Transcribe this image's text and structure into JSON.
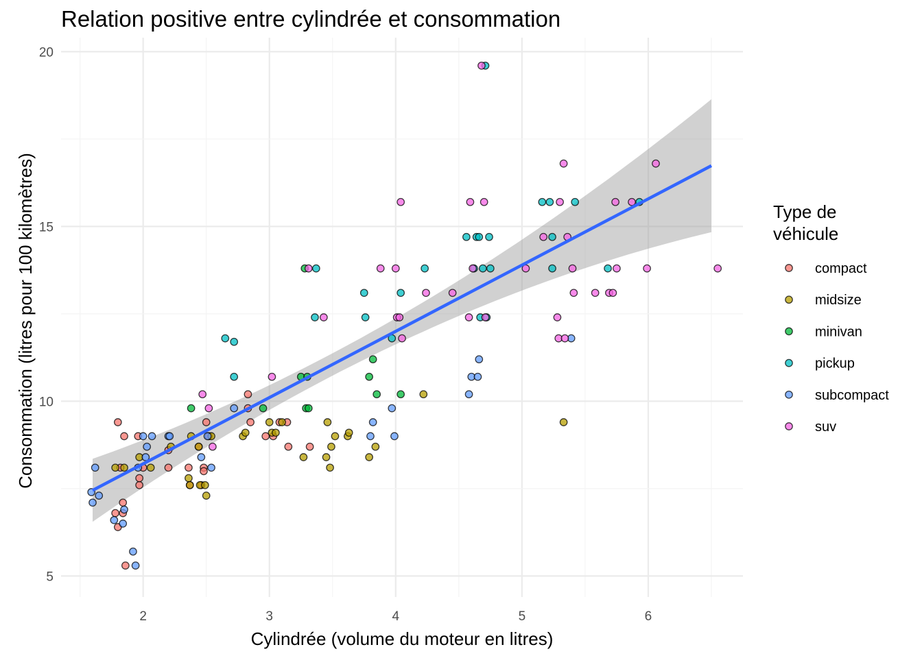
{
  "chart_data": {
    "type": "scatter",
    "title": "Relation positive entre cylindrée et consommation",
    "xlabel": "Cylindrée (volume du moteur en litres)",
    "ylabel": "Consommation (litres pour 100 kilomètres)",
    "xlim": [
      1.35,
      6.75
    ],
    "ylim": [
      4.4,
      20.4
    ],
    "x_ticks": [
      2,
      3,
      4,
      5,
      6
    ],
    "y_ticks": [
      5,
      10,
      15,
      20
    ],
    "grid": true,
    "legend": {
      "title_lines": [
        "Type de",
        "véhicule"
      ],
      "position": "right"
    },
    "series": [
      {
        "name": "compact",
        "color": "#F8766D",
        "points": [
          [
            1.78,
            6.8
          ],
          [
            1.8,
            6.4
          ],
          [
            1.82,
            8.1
          ],
          [
            1.8,
            9.4
          ],
          [
            1.85,
            9.0
          ],
          [
            1.84,
            6.8
          ],
          [
            1.84,
            7.1
          ],
          [
            1.86,
            5.3
          ],
          [
            1.96,
            9.0
          ],
          [
            1.97,
            7.6
          ],
          [
            1.97,
            7.8
          ],
          [
            2.0,
            8.1
          ],
          [
            2.2,
            8.1
          ],
          [
            2.2,
            8.6
          ],
          [
            2.36,
            8.1
          ],
          [
            2.37,
            7.6
          ],
          [
            2.46,
            7.6
          ],
          [
            2.44,
            8.7
          ],
          [
            2.48,
            8.1
          ],
          [
            2.48,
            8.0
          ],
          [
            2.5,
            9.4
          ],
          [
            2.52,
            9.0
          ],
          [
            2.83,
            10.2
          ],
          [
            2.83,
            9.8
          ],
          [
            2.85,
            9.4
          ],
          [
            2.97,
            9.0
          ],
          [
            3.03,
            9.0
          ],
          [
            3.08,
            9.4
          ],
          [
            3.14,
            9.4
          ],
          [
            3.15,
            8.7
          ],
          [
            3.32,
            8.7
          ]
        ]
      },
      {
        "name": "midsize",
        "color": "#B79F00",
        "points": [
          [
            1.78,
            8.1
          ],
          [
            1.85,
            8.1
          ],
          [
            1.97,
            8.4
          ],
          [
            2.06,
            8.1
          ],
          [
            2.22,
            8.7
          ],
          [
            2.36,
            7.8
          ],
          [
            2.37,
            7.6
          ],
          [
            2.38,
            9.0
          ],
          [
            2.45,
            7.6
          ],
          [
            2.44,
            8.7
          ],
          [
            2.5,
            7.3
          ],
          [
            2.49,
            7.6
          ],
          [
            2.54,
            9.0
          ],
          [
            2.79,
            9.0
          ],
          [
            2.81,
            9.1
          ],
          [
            3.0,
            9.4
          ],
          [
            3.02,
            9.1
          ],
          [
            3.05,
            9.1
          ],
          [
            3.1,
            9.4
          ],
          [
            3.27,
            8.4
          ],
          [
            3.45,
            8.4
          ],
          [
            3.46,
            9.4
          ],
          [
            3.48,
            8.1
          ],
          [
            3.49,
            8.7
          ],
          [
            3.52,
            9.0
          ],
          [
            3.62,
            9.0
          ],
          [
            3.63,
            9.1
          ],
          [
            3.79,
            8.4
          ],
          [
            3.84,
            8.7
          ],
          [
            4.22,
            10.2
          ],
          [
            5.33,
            9.4
          ]
        ]
      },
      {
        "name": "minivan",
        "color": "#00BA38",
        "points": [
          [
            2.38,
            9.8
          ],
          [
            2.95,
            9.8
          ],
          [
            3.25,
            10.7
          ],
          [
            3.28,
            13.8
          ],
          [
            3.29,
            9.8
          ],
          [
            3.31,
            9.8
          ],
          [
            3.3,
            10.7
          ],
          [
            3.79,
            10.7
          ],
          [
            3.82,
            11.2
          ],
          [
            3.85,
            10.2
          ],
          [
            4.04,
            10.2
          ]
        ]
      },
      {
        "name": "pickup",
        "color": "#00BFC4",
        "points": [
          [
            2.65,
            11.8
          ],
          [
            2.72,
            10.7
          ],
          [
            2.72,
            11.7
          ],
          [
            3.36,
            12.4
          ],
          [
            3.37,
            13.8
          ],
          [
            3.75,
            13.1
          ],
          [
            3.76,
            12.4
          ],
          [
            3.97,
            11.8
          ],
          [
            4.04,
            13.1
          ],
          [
            4.23,
            13.8
          ],
          [
            4.56,
            14.7
          ],
          [
            4.62,
            13.8
          ],
          [
            4.64,
            14.7
          ],
          [
            4.66,
            14.7
          ],
          [
            4.67,
            12.4
          ],
          [
            4.69,
            13.8
          ],
          [
            4.71,
            19.6
          ],
          [
            4.72,
            12.4
          ],
          [
            4.74,
            14.7
          ],
          [
            4.75,
            13.8
          ],
          [
            5.16,
            15.7
          ],
          [
            5.22,
            15.7
          ],
          [
            5.24,
            13.8
          ],
          [
            5.24,
            14.7
          ],
          [
            5.42,
            15.7
          ],
          [
            5.68,
            13.8
          ],
          [
            5.93,
            15.7
          ]
        ]
      },
      {
        "name": "subcompact",
        "color": "#619CFF",
        "points": [
          [
            1.59,
            7.4
          ],
          [
            1.6,
            7.1
          ],
          [
            1.62,
            8.1
          ],
          [
            1.65,
            7.3
          ],
          [
            1.77,
            6.6
          ],
          [
            1.84,
            6.5
          ],
          [
            1.85,
            6.9
          ],
          [
            1.92,
            5.7
          ],
          [
            1.94,
            5.3
          ],
          [
            1.96,
            8.1
          ],
          [
            2.0,
            9.0
          ],
          [
            2.02,
            8.4
          ],
          [
            2.03,
            8.7
          ],
          [
            2.07,
            9.0
          ],
          [
            2.2,
            9.0
          ],
          [
            2.21,
            9.0
          ],
          [
            2.46,
            8.4
          ],
          [
            2.51,
            9.0
          ],
          [
            2.54,
            8.1
          ],
          [
            2.72,
            9.8
          ],
          [
            3.8,
            9.0
          ],
          [
            3.82,
            9.4
          ],
          [
            3.97,
            9.8
          ],
          [
            3.99,
            9.0
          ],
          [
            4.58,
            10.2
          ],
          [
            4.6,
            10.7
          ],
          [
            4.65,
            10.7
          ],
          [
            4.66,
            11.2
          ],
          [
            5.39,
            11.8
          ]
        ]
      },
      {
        "name": "suv",
        "color": "#F564E3",
        "points": [
          [
            2.47,
            10.2
          ],
          [
            2.52,
            9.8
          ],
          [
            2.55,
            8.7
          ],
          [
            3.02,
            10.7
          ],
          [
            3.31,
            13.8
          ],
          [
            3.43,
            12.4
          ],
          [
            3.88,
            13.8
          ],
          [
            4.0,
            13.8
          ],
          [
            4.01,
            12.4
          ],
          [
            4.03,
            12.4
          ],
          [
            4.04,
            15.7
          ],
          [
            4.05,
            11.8
          ],
          [
            4.24,
            13.1
          ],
          [
            4.45,
            13.1
          ],
          [
            4.58,
            12.4
          ],
          [
            4.59,
            15.7
          ],
          [
            4.61,
            13.8
          ],
          [
            4.68,
            19.6
          ],
          [
            4.7,
            15.7
          ],
          [
            4.71,
            12.4
          ],
          [
            5.03,
            13.8
          ],
          [
            5.17,
            14.7
          ],
          [
            5.28,
            12.4
          ],
          [
            5.29,
            11.8
          ],
          [
            5.3,
            15.7
          ],
          [
            5.33,
            16.8
          ],
          [
            5.34,
            11.8
          ],
          [
            5.36,
            14.7
          ],
          [
            5.4,
            13.8
          ],
          [
            5.41,
            13.1
          ],
          [
            5.58,
            13.1
          ],
          [
            5.69,
            13.1
          ],
          [
            5.72,
            13.1
          ],
          [
            5.74,
            15.7
          ],
          [
            5.75,
            13.8
          ],
          [
            5.87,
            15.7
          ],
          [
            5.99,
            13.8
          ],
          [
            6.06,
            16.8
          ],
          [
            6.55,
            13.8
          ]
        ]
      }
    ],
    "trend": {
      "method": "lm",
      "x_range": [
        1.6,
        6.5
      ],
      "slope": 1.895,
      "intercept": 4.42,
      "ci_halfwidth_min": 0.32,
      "ci_halfwidth_scale": 0.17,
      "x_center": 3.45,
      "line_color": "#3366FF",
      "band_color": "#999999"
    }
  }
}
